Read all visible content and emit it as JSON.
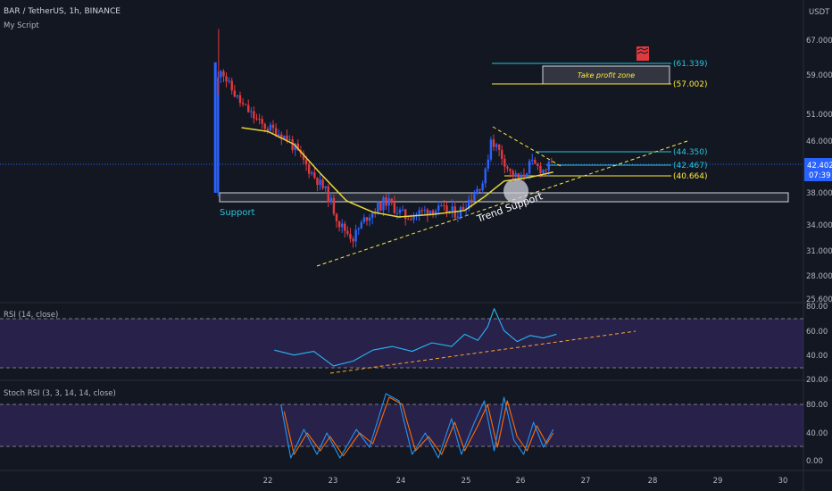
{
  "header": {
    "symbol": "BAR / TetherUS, 1h, BINANCE",
    "script": "My Script",
    "currency": "USDT"
  },
  "price_axis": {
    "ticks": [
      "67.000",
      "59.000",
      "51.000",
      "46.000",
      "38.000",
      "34.000",
      "31.000",
      "28.000",
      "25.600"
    ],
    "current_price": "42.402",
    "countdown": "07:39"
  },
  "time_axis": {
    "ticks": [
      "22",
      "23",
      "24",
      "25",
      "26",
      "27",
      "28",
      "29",
      "30"
    ]
  },
  "annotations": {
    "support": "Support",
    "trend_support": "Trend Support",
    "take_profit_zone": "Take profit zone",
    "levels": [
      {
        "label": "(61.339)",
        "color": "#26c6da"
      },
      {
        "label": "(57.002)",
        "color": "#ffeb3b"
      },
      {
        "label": "(44.350)",
        "color": "#26c6da"
      },
      {
        "label": "(42.467)",
        "color": "#26c6da"
      },
      {
        "label": "(40.664)",
        "color": "#ffeb3b"
      }
    ]
  },
  "rsi_panel": {
    "title": "RSI (14, close)",
    "ticks": [
      "80.00",
      "60.00",
      "40.00",
      "20.00"
    ]
  },
  "stoch_panel": {
    "title": "Stoch RSI (3, 3, 14, 14, close)",
    "ticks": [
      "80.00",
      "40.00",
      "0.00"
    ]
  },
  "colors": {
    "background": "#131722",
    "bull": "#2962ff",
    "bear": "#e03a3e",
    "ma": "#e6d53a",
    "rsi_line": "#29b6f6",
    "stoch_k": "#2196f3",
    "stoch_d": "#ff6d00",
    "panel_fill": "#3b2a6b",
    "price_label_bg": "#2962ff"
  },
  "chart_data": {
    "type": "candlestick",
    "title": "BAR / TetherUS, 1h, BINANCE",
    "x_ticks": [
      "22",
      "23",
      "24",
      "25",
      "26",
      "27",
      "28",
      "29",
      "30"
    ],
    "ylim": [
      25.6,
      70
    ],
    "close_path": [
      {
        "x": 21.2,
        "y": 38.0
      },
      {
        "x": 21.25,
        "y": 62.0
      },
      {
        "x": 21.4,
        "y": 57.0
      },
      {
        "x": 21.6,
        "y": 53.0
      },
      {
        "x": 21.9,
        "y": 49.0
      },
      {
        "x": 22.1,
        "y": 48.0
      },
      {
        "x": 22.3,
        "y": 46.5
      },
      {
        "x": 22.6,
        "y": 42.0
      },
      {
        "x": 22.9,
        "y": 38.0
      },
      {
        "x": 23.1,
        "y": 34.0
      },
      {
        "x": 23.3,
        "y": 32.5
      },
      {
        "x": 23.5,
        "y": 35.0
      },
      {
        "x": 23.8,
        "y": 37.0
      },
      {
        "x": 24.1,
        "y": 35.0
      },
      {
        "x": 24.5,
        "y": 36.0
      },
      {
        "x": 24.9,
        "y": 35.5
      },
      {
        "x": 25.1,
        "y": 37.5
      },
      {
        "x": 25.3,
        "y": 40.0
      },
      {
        "x": 25.4,
        "y": 46.5
      },
      {
        "x": 25.55,
        "y": 44.0
      },
      {
        "x": 25.7,
        "y": 41.0
      },
      {
        "x": 25.85,
        "y": 40.0
      },
      {
        "x": 26.0,
        "y": 42.5
      },
      {
        "x": 26.2,
        "y": 41.5
      },
      {
        "x": 26.35,
        "y": 42.4
      }
    ],
    "moving_average": [
      {
        "x": 21.6,
        "y": 48.5
      },
      {
        "x": 22.0,
        "y": 47.8
      },
      {
        "x": 22.4,
        "y": 45.5
      },
      {
        "x": 22.8,
        "y": 41.0
      },
      {
        "x": 23.2,
        "y": 37.0
      },
      {
        "x": 23.6,
        "y": 35.6
      },
      {
        "x": 24.0,
        "y": 35.0
      },
      {
        "x": 24.5,
        "y": 35.3
      },
      {
        "x": 25.0,
        "y": 35.8
      },
      {
        "x": 25.3,
        "y": 37.5
      },
      {
        "x": 25.6,
        "y": 39.8
      },
      {
        "x": 26.0,
        "y": 40.4
      },
      {
        "x": 26.35,
        "y": 41.2
      }
    ],
    "support_zone": [
      37.2,
      38.6
    ],
    "horizontal_levels": [
      61.339,
      57.002,
      44.35,
      42.467,
      40.664
    ],
    "current_price": 42.402,
    "rsi": {
      "ylim": [
        20,
        80
      ],
      "overbought": 70,
      "oversold": 30,
      "values": [
        {
          "x": 22.1,
          "y": 44
        },
        {
          "x": 22.4,
          "y": 40
        },
        {
          "x": 22.7,
          "y": 43
        },
        {
          "x": 23.0,
          "y": 31
        },
        {
          "x": 23.3,
          "y": 35
        },
        {
          "x": 23.6,
          "y": 44
        },
        {
          "x": 23.9,
          "y": 47
        },
        {
          "x": 24.2,
          "y": 43
        },
        {
          "x": 24.5,
          "y": 50
        },
        {
          "x": 24.8,
          "y": 47
        },
        {
          "x": 25.0,
          "y": 57
        },
        {
          "x": 25.2,
          "y": 52
        },
        {
          "x": 25.35,
          "y": 63
        },
        {
          "x": 25.45,
          "y": 78
        },
        {
          "x": 25.6,
          "y": 60
        },
        {
          "x": 25.8,
          "y": 51
        },
        {
          "x": 26.0,
          "y": 56
        },
        {
          "x": 26.2,
          "y": 54
        },
        {
          "x": 26.4,
          "y": 57
        }
      ]
    },
    "stoch_rsi": {
      "ylim": [
        -10,
        110
      ],
      "k": [
        {
          "x": 22.2,
          "y": 80
        },
        {
          "x": 22.35,
          "y": 5
        },
        {
          "x": 22.55,
          "y": 45
        },
        {
          "x": 22.75,
          "y": 10
        },
        {
          "x": 22.9,
          "y": 40
        },
        {
          "x": 23.1,
          "y": 5
        },
        {
          "x": 23.35,
          "y": 45
        },
        {
          "x": 23.55,
          "y": 20
        },
        {
          "x": 23.8,
          "y": 95
        },
        {
          "x": 24.0,
          "y": 85
        },
        {
          "x": 24.2,
          "y": 10
        },
        {
          "x": 24.4,
          "y": 40
        },
        {
          "x": 24.6,
          "y": 5
        },
        {
          "x": 24.8,
          "y": 60
        },
        {
          "x": 24.95,
          "y": 10
        },
        {
          "x": 25.15,
          "y": 55
        },
        {
          "x": 25.3,
          "y": 85
        },
        {
          "x": 25.45,
          "y": 15
        },
        {
          "x": 25.6,
          "y": 90
        },
        {
          "x": 25.75,
          "y": 30
        },
        {
          "x": 25.9,
          "y": 10
        },
        {
          "x": 26.05,
          "y": 55
        },
        {
          "x": 26.2,
          "y": 20
        },
        {
          "x": 26.35,
          "y": 45
        }
      ],
      "d": [
        {
          "x": 22.25,
          "y": 70
        },
        {
          "x": 22.4,
          "y": 10
        },
        {
          "x": 22.6,
          "y": 40
        },
        {
          "x": 22.8,
          "y": 15
        },
        {
          "x": 22.95,
          "y": 35
        },
        {
          "x": 23.15,
          "y": 8
        },
        {
          "x": 23.4,
          "y": 40
        },
        {
          "x": 23.6,
          "y": 25
        },
        {
          "x": 23.85,
          "y": 90
        },
        {
          "x": 24.05,
          "y": 80
        },
        {
          "x": 24.25,
          "y": 15
        },
        {
          "x": 24.45,
          "y": 35
        },
        {
          "x": 24.65,
          "y": 10
        },
        {
          "x": 24.85,
          "y": 55
        },
        {
          "x": 25.0,
          "y": 15
        },
        {
          "x": 25.2,
          "y": 50
        },
        {
          "x": 25.35,
          "y": 80
        },
        {
          "x": 25.5,
          "y": 20
        },
        {
          "x": 25.65,
          "y": 85
        },
        {
          "x": 25.8,
          "y": 35
        },
        {
          "x": 25.95,
          "y": 15
        },
        {
          "x": 26.1,
          "y": 50
        },
        {
          "x": 26.25,
          "y": 25
        },
        {
          "x": 26.35,
          "y": 40
        }
      ]
    }
  }
}
